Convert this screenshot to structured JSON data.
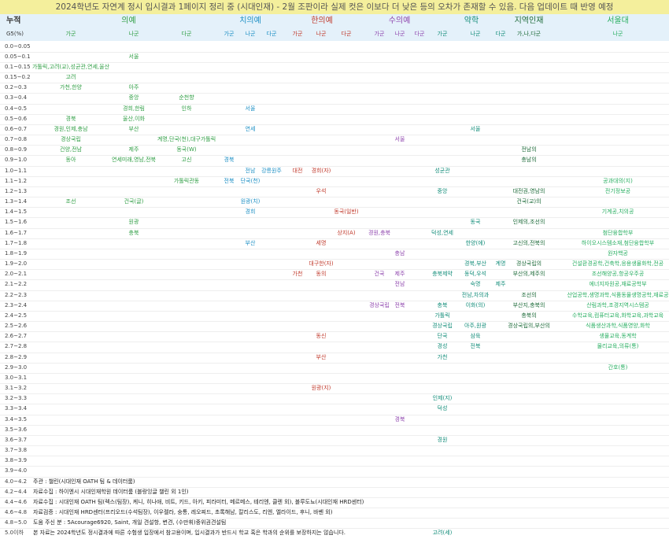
{
  "title": "2024학년도 자연계 정시 입시결과 1페이지 정리 중 (시대인재) - 2월 조판이라 실제 컷은 이보다 더 낮은 등의 오차가 존재할 수 있음. 다음 업데이트 때 반영 예정",
  "header": {
    "corner": "누적",
    "unit": "G5(%)",
    "groups": [
      {
        "name": "의예",
        "color": "#2f9e44",
        "subs": [
          "가군",
          "나군",
          "다군"
        ]
      },
      {
        "name": "치의예",
        "color": "#1c8fc4",
        "subs": [
          "가군",
          "나군",
          "다군"
        ]
      },
      {
        "name": "한의예",
        "color": "#c0392b",
        "subs": [
          "가군",
          "나군",
          "다군"
        ]
      },
      {
        "name": "수의예",
        "color": "#8e44ad",
        "subs": [
          "가군",
          "나군",
          "다군"
        ]
      },
      {
        "name": "약학",
        "color": "#138d7a",
        "subs": [
          "가군",
          "나군",
          "다군"
        ]
      },
      {
        "name": "지역인재",
        "color": "#1e6b3a",
        "subs": [
          "가,나,다군"
        ]
      },
      {
        "name": "서울대",
        "color": "#27ae60",
        "subs": [
          "나군"
        ]
      }
    ]
  },
  "rows": [
    {
      "label": "0.0~0.05",
      "cells": {}
    },
    {
      "label": "0.05~0.1",
      "cells": {
        "2": "서울"
      }
    },
    {
      "label": "0.1~0.15",
      "cells": {
        "1": "가톨릭,고려(교),성균관,연세,울산"
      }
    },
    {
      "label": "0.15~0.2",
      "cells": {
        "1": "고려"
      }
    },
    {
      "label": "0.2~0.3",
      "cells": {
        "1": "가천,한양",
        "2": "아주"
      }
    },
    {
      "label": "0.3~0.4",
      "cells": {
        "2": "중앙",
        "3": "순천향"
      }
    },
    {
      "label": "0.4~0.5",
      "cells": {
        "2": "경희,한림",
        "3": "인하",
        "5": "서울"
      }
    },
    {
      "label": "0.5~0.6",
      "cells": {
        "1": "경북",
        "2": "울산,이화"
      }
    },
    {
      "label": "0.6~0.7",
      "cells": {
        "1": "경원,인제,충남",
        "2": "부산",
        "5": "연세",
        "14": "서울"
      }
    },
    {
      "label": "0.7~0.8",
      "cells": {
        "1": "경상국립",
        "3": "계명,단국(천),대구가톨릭",
        "11": "서울"
      }
    },
    {
      "label": "0.8~0.9",
      "cells": {
        "1": "건양,전남",
        "2": "제주",
        "3": "동국(W)",
        "16": "전남의"
      }
    },
    {
      "label": "0.9~1.0",
      "cells": {
        "1": "동아",
        "2": "연세미래,영남,전북",
        "3": "고신",
        "4": "경북",
        "16": "충남의"
      }
    },
    {
      "label": "1.0~1.1",
      "cells": {
        "5": "전남",
        "6": "강릉원주",
        "7": "대전",
        "8": "경희(자)",
        "13": "성균관"
      }
    },
    {
      "label": "1.1~1.2",
      "cells": {
        "3": "가톨릭관동",
        "4": "전북",
        "5": "단국(천)",
        "17": "공과대의(지)"
      }
    },
    {
      "label": "1.2~1.3",
      "cells": {
        "8": "우석",
        "13": "중앙",
        "16": "대전권,영남의",
        "17": "전기정보공"
      }
    },
    {
      "label": "1.3~1.4",
      "cells": {
        "1": "조선",
        "2": "건국(글)",
        "5": "원광(치)",
        "16": "건국(교)의"
      }
    },
    {
      "label": "1.4~1.5",
      "cells": {
        "5": "경희",
        "9": "동국(일반)",
        "17": "기계공,치의공"
      }
    },
    {
      "label": "1.5~1.6",
      "cells": {
        "2": "원광",
        "14": "동국",
        "16": "인제의,조선의"
      }
    },
    {
      "label": "1.6~1.7",
      "cells": {
        "2": "충북",
        "9": "상지(A)",
        "10": "경원,충북",
        "13": "덕성,연세",
        "17": "첨단융합학부"
      }
    },
    {
      "label": "1.7~1.8",
      "cells": {
        "5": "부산",
        "8": "세명",
        "14": "한양(에)",
        "16": "고신의,전북의",
        "17": "하이오시스템소재,첨단융합학부"
      }
    },
    {
      "label": "1.8~1.9",
      "cells": {
        "11": "충남",
        "17": "원자핵공"
      }
    },
    {
      "label": "1.9~2.0",
      "cells": {
        "8": "대구한(자)",
        "14": "경북,부산",
        "15": "계명",
        "16": "경상국립의",
        "17": "건설환경공학,건축학,응용생물화학,전공"
      }
    },
    {
      "label": "2.0~2.1",
      "cells": {
        "7": "가천",
        "8": "동의",
        "10": "건국",
        "11": "제주",
        "13": "충북제약",
        "14": "동덕,우석",
        "16": "부산의,제주의",
        "17": "조선해양공,항공우주공"
      }
    },
    {
      "label": "2.1~2.2",
      "cells": {
        "11": "전남",
        "14": "숙명",
        "15": "제주",
        "17": "에너지자원공,재료공학부"
      }
    },
    {
      "label": "2.2~2.3",
      "cells": {
        "14": "전남,차의과",
        "16": "조선의",
        "17": "산업공학,생명과학,식품동물생명공학,재료공"
      }
    },
    {
      "label": "2.3~2.4",
      "cells": {
        "10": "경상국립",
        "11": "전북",
        "13": "충북",
        "14": "이화(의)",
        "16": "부산지,충북의",
        "17": "산림과학,조경지역시스템공"
      }
    },
    {
      "label": "2.4~2.5",
      "cells": {
        "13": "가톨릭",
        "16": "충북의",
        "17": "수학교육,컴퓨터교육,화학교육,과학교육"
      }
    },
    {
      "label": "2.5~2.6",
      "cells": {
        "13": "경상국립",
        "14": "아주,원광",
        "16": "경상국립의,부산의",
        "17": "식품생산과학,식품영양,화학"
      }
    },
    {
      "label": "2.6~2.7",
      "cells": {
        "8": "동신",
        "13": "단국",
        "14": "삼육",
        "17": "생물교육,동계학"
      }
    },
    {
      "label": "2.7~2.8",
      "cells": {
        "13": "경성",
        "14": "전북",
        "17": "물리교육,의류(통)"
      }
    },
    {
      "label": "2.8~2.9",
      "cells": {
        "8": "부산",
        "13": "가천"
      }
    },
    {
      "label": "2.9~3.0",
      "cells": {
        "17": "간호(통)"
      }
    },
    {
      "label": "3.0~3.1",
      "cells": {}
    },
    {
      "label": "3.1~3.2",
      "cells": {
        "8": "원광(지)"
      }
    },
    {
      "label": "3.2~3.3",
      "cells": {
        "13": "인제(지)"
      }
    },
    {
      "label": "3.3~3.4",
      "cells": {
        "13": "덕성"
      }
    },
    {
      "label": "3.4~3.5",
      "cells": {
        "11": "경북"
      }
    },
    {
      "label": "3.5~3.6",
      "cells": {}
    },
    {
      "label": "3.6~3.7",
      "cells": {
        "13": "경원"
      }
    },
    {
      "label": "3.7~3.8",
      "cells": {}
    },
    {
      "label": "3.8~3.9",
      "cells": {}
    },
    {
      "label": "3.9~4.0",
      "cells": {}
    },
    {
      "label": "4.0~4.2",
      "note": "주관 : 챌린(시대인재 OATH 팀 & 데이터룸)",
      "cells": {}
    },
    {
      "label": "4.2~4.4",
      "note": "자료수집 : 하이엔시 시대인재학원 데이터룸 (블랑잉글 챌린 외 1인)",
      "cells": {}
    },
    {
      "label": "4.4~4.6",
      "note": "자료수집 : 시대인재 OATH 팀(렉스(팀장), 케니, 히나애, 비트, 키드, 아키, 피라미터, 메르메스, 테리엔, 클렌 외), 블루도뇨(시대인재 HRD센터)",
      "cells": {}
    },
    {
      "label": "4.6~4.8",
      "note": "자료검증 : 시대인재 HRD센터(프리오드(수석팀장), 이우켈라, 숭통, 레오찌드, 초록해남, 칼리스도, 리엔, 엘라이드, 후니, 바벤 외)",
      "cells": {}
    },
    {
      "label": "4.8~5.0",
      "note": "도움 주신 분 : 5Acourage6920, Saint, 개일 견설항, 변견, (수만휘)중위권견설팀",
      "cells": {}
    },
    {
      "label": "5.0이하",
      "note": "본 자료는 2024학년도 정시결과에 따른 수험생 입장에서 참고용이며, 입시결과가 반드시 학교 혹은 학과의 순위를 보장하지는 않습니다.",
      "cells": {
        "13": "고려(세)"
      }
    }
  ]
}
